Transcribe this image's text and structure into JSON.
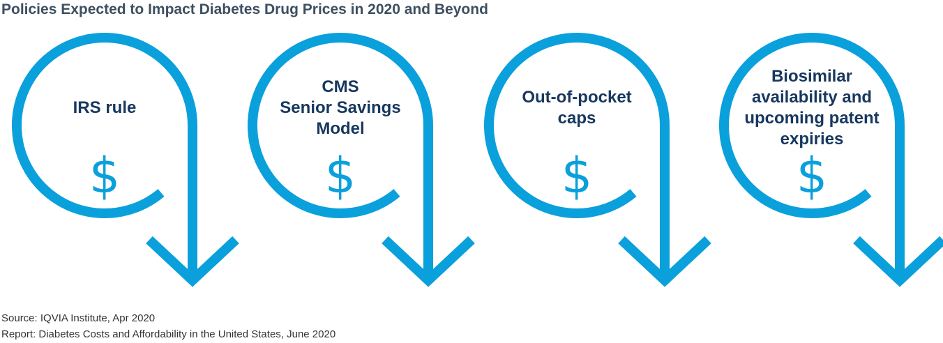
{
  "title": "Policies Expected to Impact Diabetes Drug Prices in 2020 and Beyond",
  "colors": {
    "arrow": "#0aa0dc",
    "label": "#17375e",
    "title": "#3d4f60"
  },
  "policies": [
    {
      "lines": [
        "IRS rule"
      ],
      "symbol": "$",
      "icon": "circular-down-arrow-icon"
    },
    {
      "lines": [
        "CMS",
        "Senior Savings",
        "Model"
      ],
      "symbol": "$",
      "icon": "circular-down-arrow-icon"
    },
    {
      "lines": [
        "Out-of-pocket",
        "caps"
      ],
      "symbol": "$",
      "icon": "circular-down-arrow-icon"
    },
    {
      "lines": [
        "Biosimilar",
        "availability and",
        "upcoming patent",
        "expiries"
      ],
      "symbol": "$",
      "icon": "circular-down-arrow-icon"
    }
  ],
  "source": {
    "line1": "Source: IQVIA Institute, Apr 2020",
    "line2": "Report: Diabetes Costs and Affordability in the United States, June 2020"
  }
}
